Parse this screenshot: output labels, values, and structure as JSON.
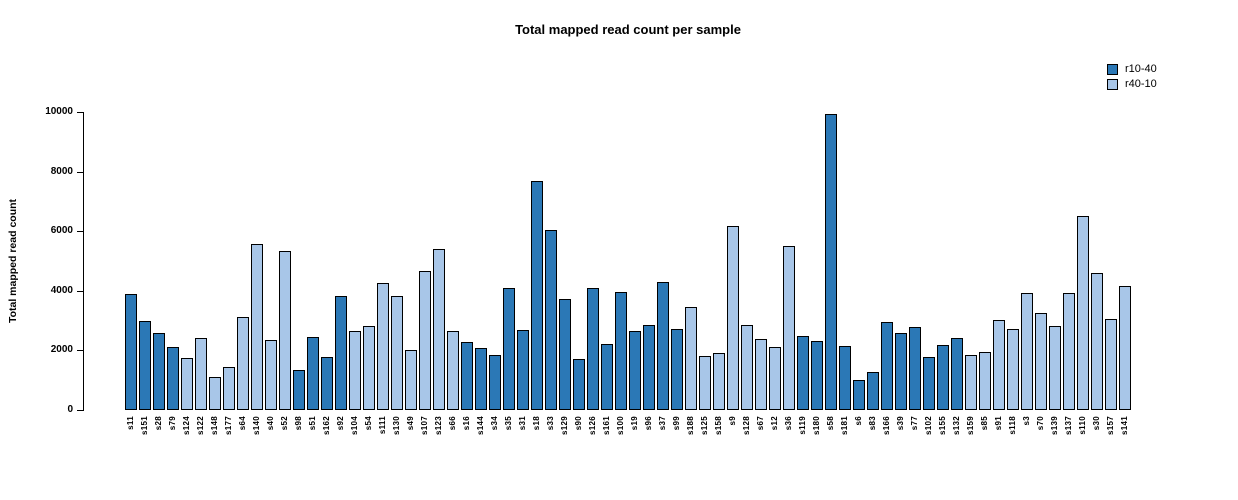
{
  "title": "Total mapped read count per sample",
  "chart_data": {
    "type": "bar",
    "title": "Total mapped read count per sample",
    "xlabel": "",
    "ylabel": "Total mapped read count",
    "ylim": [
      0,
      10000
    ],
    "yticks": [
      0,
      2000,
      4000,
      6000,
      8000,
      10000
    ],
    "grid": false,
    "legend_position": "top-right",
    "series": [
      {
        "name": "r10-40",
        "color": "#2b78b6"
      },
      {
        "name": "r40-10",
        "color": "#a8c6e8"
      }
    ],
    "categories": [
      "s11",
      "s151",
      "s28",
      "s79",
      "s124",
      "s122",
      "s148",
      "s177",
      "s64",
      "s140",
      "s40",
      "s52",
      "s98",
      "s51",
      "s162",
      "s92",
      "s104",
      "s54",
      "s111",
      "s130",
      "s49",
      "s107",
      "s123",
      "s66",
      "s16",
      "s144",
      "s34",
      "s35",
      "s31",
      "s18",
      "s33",
      "s129",
      "s90",
      "s126",
      "s161",
      "s100",
      "s19",
      "s96",
      "s37",
      "s99",
      "s188",
      "s125",
      "s158",
      "s9",
      "s128",
      "s67",
      "s12",
      "s36",
      "s119",
      "s180",
      "s58",
      "s181",
      "s6",
      "s83",
      "s166",
      "s39",
      "s77",
      "s102",
      "s155",
      "s132",
      "s159",
      "s85",
      "s91",
      "s118",
      "s3",
      "s70",
      "s139",
      "s137",
      "s110",
      "s30",
      "s157",
      "s141"
    ],
    "values": [
      3890,
      2990,
      2580,
      2120,
      1740,
      2410,
      1110,
      1450,
      3130,
      5560,
      2360,
      5340,
      1340,
      2440,
      1780,
      3840,
      2640,
      2820,
      4270,
      3820,
      2010,
      4670,
      5400,
      2640,
      2290,
      2090,
      1840,
      4080,
      2680,
      7670,
      6030,
      3720,
      1700,
      4110,
      2230,
      3950,
      2650,
      2850,
      4300,
      2730,
      3450,
      1810,
      1920,
      6170,
      2840,
      2370,
      2100,
      5500,
      2480,
      2330,
      9920,
      2150,
      990,
      1260,
      2960,
      2600,
      2790,
      1770,
      2190,
      2400,
      1840,
      1930,
      3020,
      2730,
      3940,
      3240,
      2820,
      3910,
      6500,
      4600,
      3050,
      4160
    ],
    "series_index": [
      0,
      0,
      0,
      0,
      1,
      1,
      1,
      1,
      1,
      1,
      1,
      1,
      0,
      0,
      0,
      0,
      1,
      1,
      1,
      1,
      1,
      1,
      1,
      1,
      0,
      0,
      0,
      0,
      0,
      0,
      0,
      0,
      0,
      0,
      0,
      0,
      0,
      0,
      0,
      0,
      1,
      1,
      1,
      1,
      1,
      1,
      1,
      1,
      0,
      0,
      0,
      0,
      0,
      0,
      0,
      0,
      0,
      0,
      0,
      0,
      1,
      1,
      1,
      1,
      1,
      1,
      1,
      1,
      1,
      1,
      1,
      1
    ]
  }
}
